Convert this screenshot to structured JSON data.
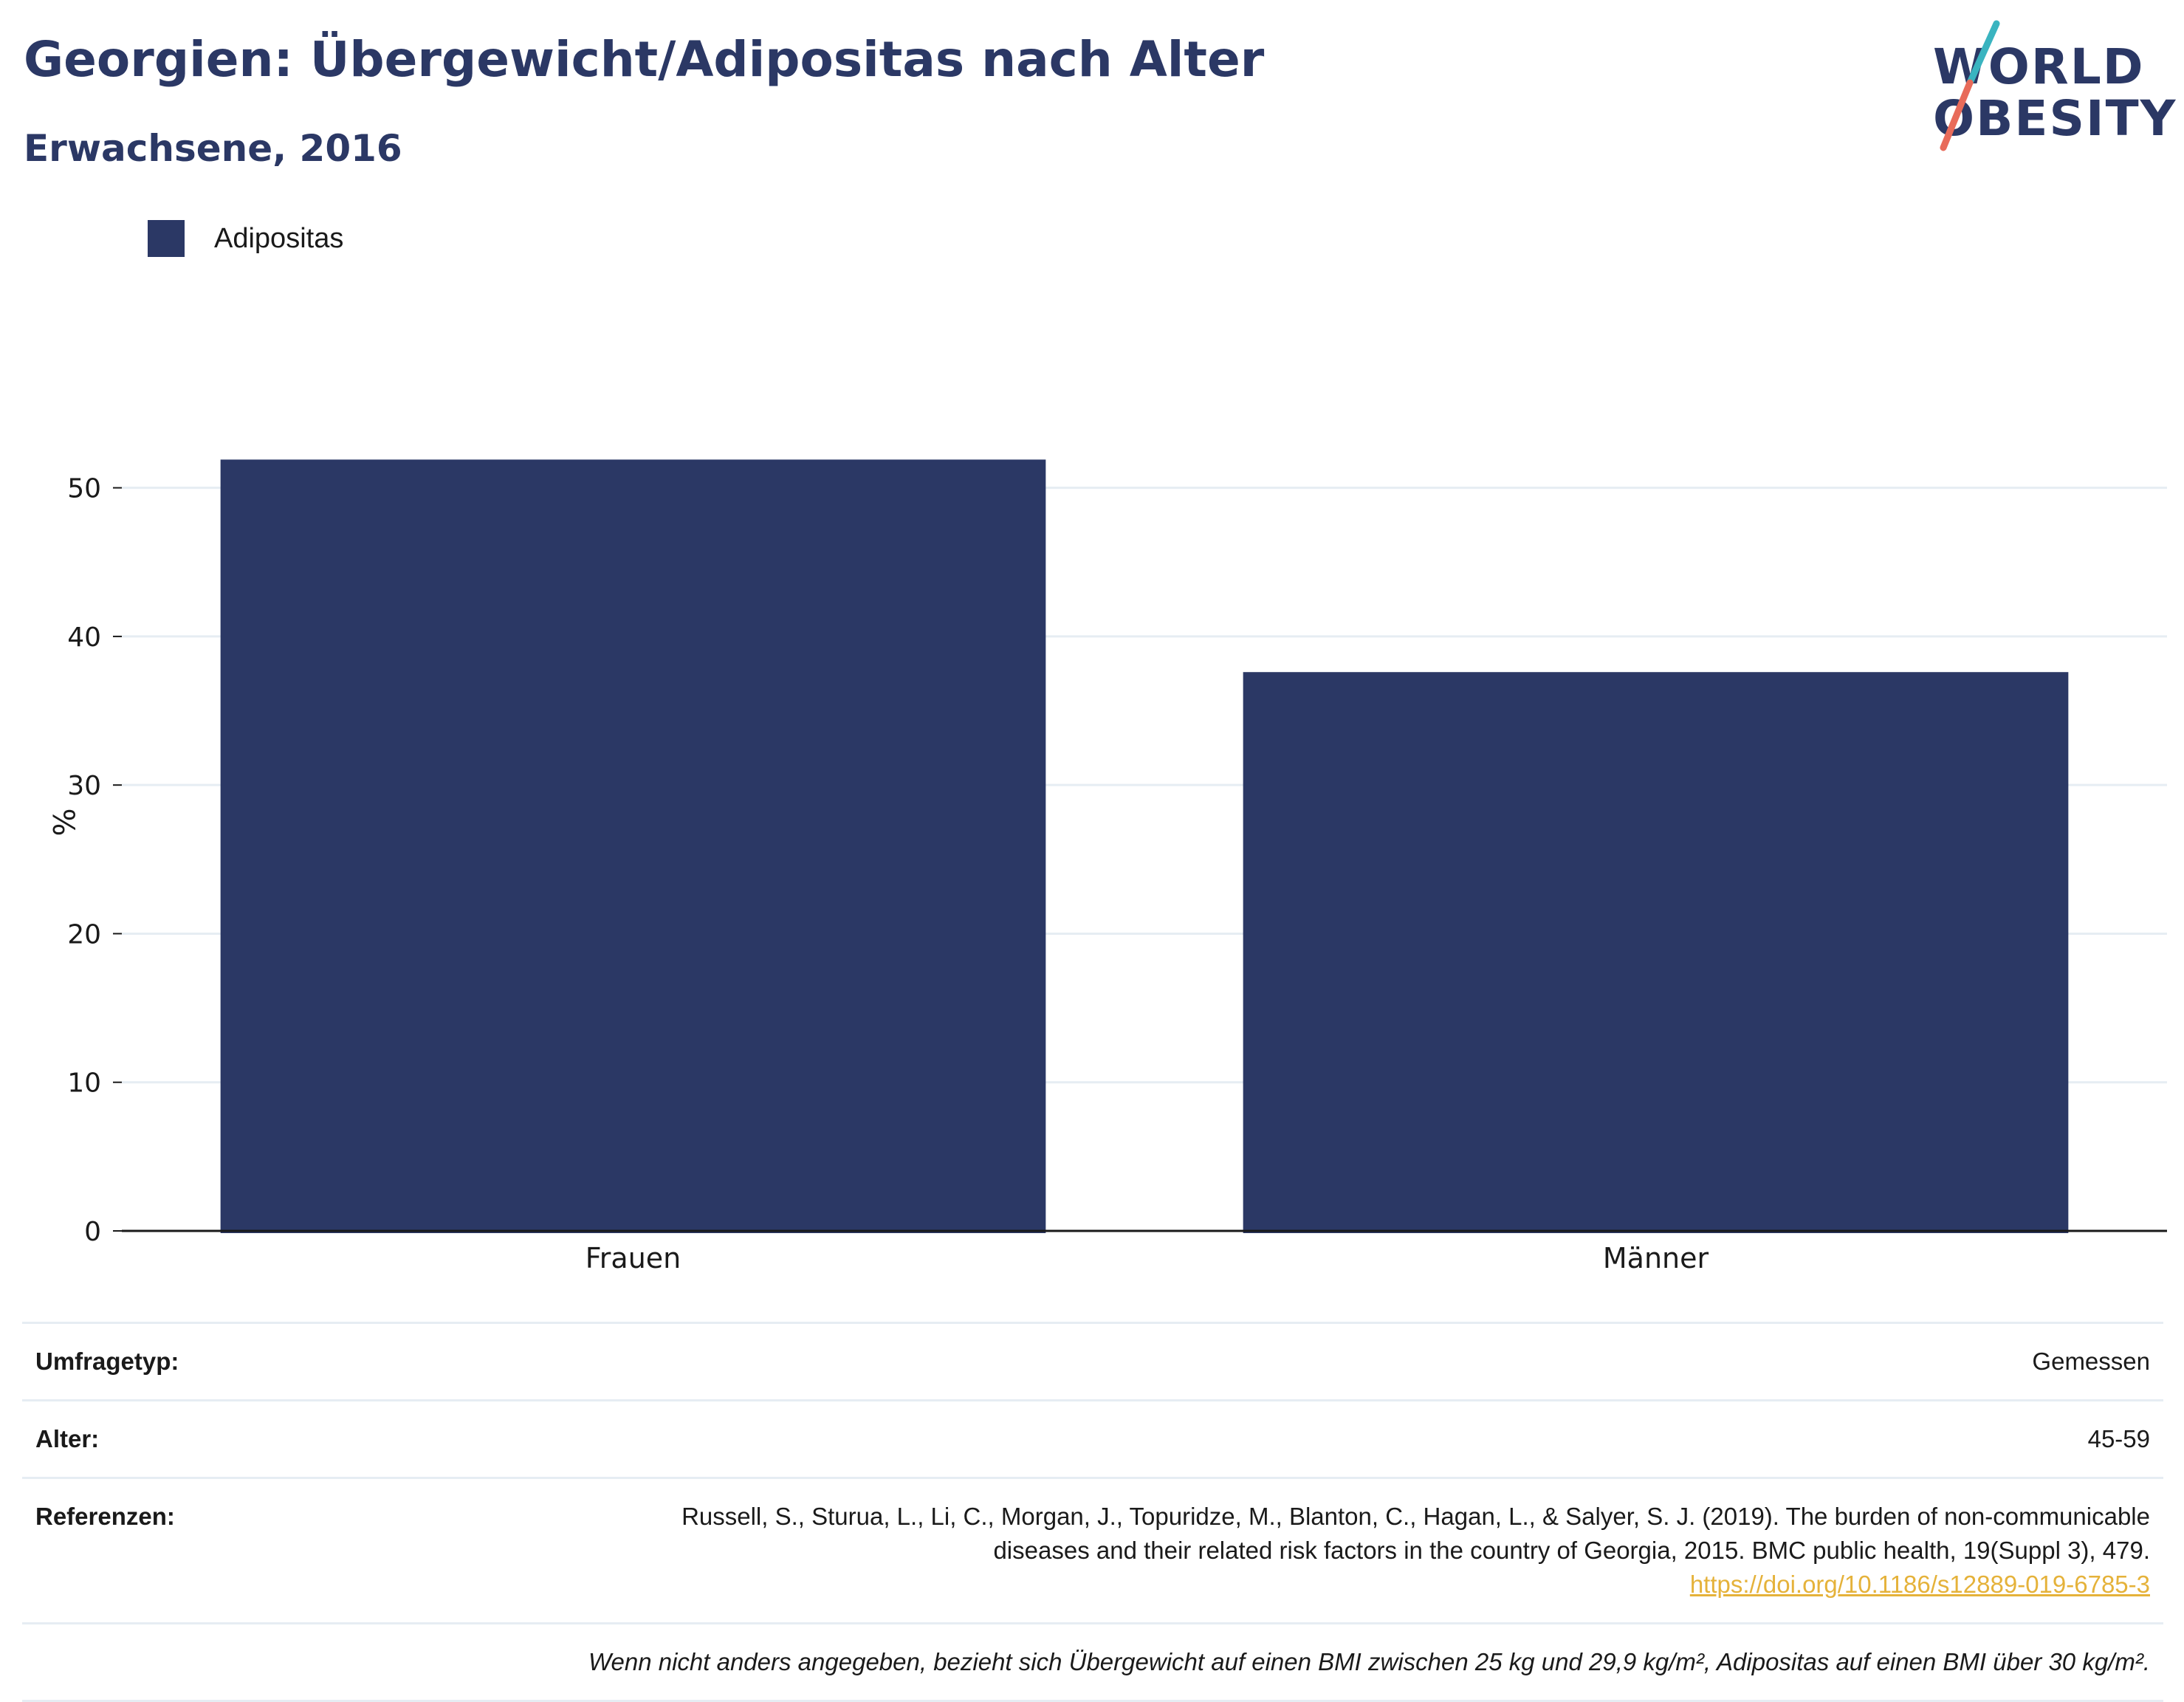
{
  "header": {
    "title": "Georgien: Übergewicht/Adipositas nach Alter",
    "subtitle": "Erwachsene, 2016"
  },
  "logo": {
    "line1": "WORLD",
    "line2": "OBESITY",
    "colors": {
      "text": "#2b3865",
      "slash_top": "#3ab4c0",
      "slash_bottom": "#e86b5a"
    }
  },
  "legend": {
    "items": [
      {
        "label": "Adipositas",
        "color": "#2b3865"
      }
    ]
  },
  "chart_data": {
    "type": "bar",
    "categories": [
      "Frauen",
      "Männer"
    ],
    "series": [
      {
        "name": "Adipositas",
        "values": [
          51.9,
          37.6
        ],
        "color": "#2b3865"
      }
    ],
    "ylabel": "%",
    "xlabel": "",
    "ylim": [
      0,
      55
    ],
    "yticks": [
      0,
      10,
      20,
      30,
      40,
      50
    ],
    "grid": true,
    "legend_position": "top-left"
  },
  "metadata": {
    "survey_label": "Umfragetyp:",
    "survey_value": "Gemessen",
    "age_label": "Alter:",
    "age_value": "45-59",
    "ref_label": "Referenzen:",
    "ref_line1": "Russell, S., Sturua, L., Li, C., Morgan, J., Topuridze, M., Blanton, C., Hagan, L., & Salyer, S. J. (2019). The burden of non-communicable",
    "ref_line2": "diseases and their related risk factors in the country of Georgia, 2015. BMC public health, 19(Suppl 3), 479.",
    "ref_link": "https://doi.org/10.1186/s12889-019-6785-3",
    "note": "Wenn nicht anders angegeben, bezieht sich Übergewicht auf einen BMI zwischen 25 kg und 29,9 kg/m², Adipositas auf einen BMI über 30 kg/m²."
  }
}
